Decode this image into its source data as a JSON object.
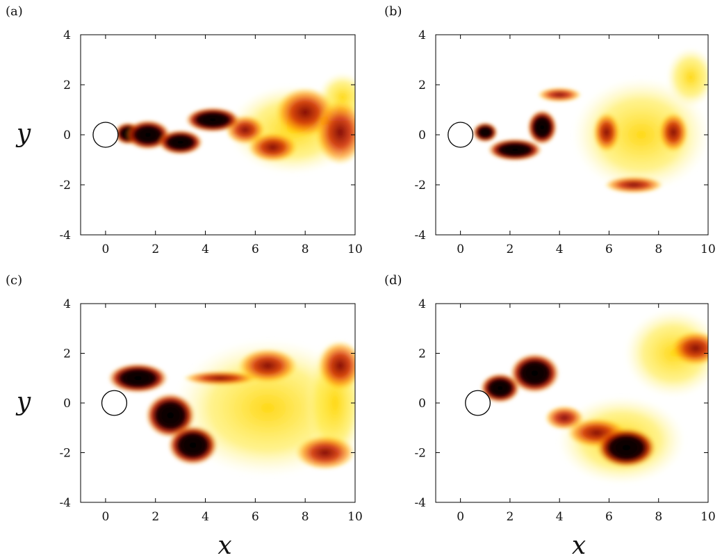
{
  "chart_data": [
    {
      "type": "heatmap",
      "panel_label": "(a)",
      "xlim": [
        -1,
        10
      ],
      "ylim": [
        -4,
        4
      ],
      "xticks": [
        0,
        2,
        4,
        6,
        8,
        10
      ],
      "yticks": [
        4,
        2,
        0,
        -2,
        -4
      ],
      "xtick_labels": [
        "0",
        "2",
        "4",
        "6",
        "8",
        "10"
      ],
      "ytick_labels": [
        "4",
        "2",
        "0",
        "-2",
        "-4"
      ],
      "ylabel": "y",
      "xlabel": "",
      "cylinder": {
        "x": 0,
        "y": 0,
        "r": 0.5
      },
      "colormap": "hot (black-red-yellow-white)",
      "features": [
        {
          "x": 0.9,
          "y": 0.05,
          "rx": 0.55,
          "ry": 0.45,
          "level": "high"
        },
        {
          "x": 1.7,
          "y": 0.0,
          "rx": 0.9,
          "ry": 0.6,
          "level": "high"
        },
        {
          "x": 3.0,
          "y": -0.3,
          "rx": 0.9,
          "ry": 0.5,
          "level": "high"
        },
        {
          "x": 4.3,
          "y": 0.6,
          "rx": 1.1,
          "ry": 0.5,
          "level": "high"
        },
        {
          "x": 5.6,
          "y": 0.2,
          "rx": 0.8,
          "ry": 0.6,
          "level": "medium"
        },
        {
          "x": 6.7,
          "y": -0.5,
          "rx": 1.0,
          "ry": 0.6,
          "level": "medium"
        },
        {
          "x": 8.0,
          "y": 0.9,
          "rx": 1.2,
          "ry": 1.0,
          "level": "medium"
        },
        {
          "x": 9.4,
          "y": 0.1,
          "rx": 1.0,
          "ry": 1.3,
          "level": "medium"
        },
        {
          "x": 7.5,
          "y": 0.2,
          "rx": 2.6,
          "ry": 1.8,
          "level": "low"
        },
        {
          "x": 9.5,
          "y": 1.5,
          "rx": 1.0,
          "ry": 1.0,
          "level": "low"
        }
      ]
    },
    {
      "type": "heatmap",
      "panel_label": "(b)",
      "xlim": [
        -1,
        10
      ],
      "ylim": [
        -4,
        4
      ],
      "xticks": [
        0,
        2,
        4,
        6,
        8,
        10
      ],
      "yticks": [
        4,
        2,
        0,
        -2,
        -4
      ],
      "xtick_labels": [
        "0",
        "2",
        "4",
        "6",
        "8",
        "10"
      ],
      "ytick_labels": [
        "4",
        "2",
        "0",
        "-2",
        "-4"
      ],
      "ylabel": "",
      "xlabel": "",
      "cylinder": {
        "x": 0,
        "y": 0,
        "r": 0.5
      },
      "colormap": "hot (black-red-yellow-white)",
      "features": [
        {
          "x": 1.0,
          "y": 0.1,
          "rx": 0.5,
          "ry": 0.4,
          "level": "high"
        },
        {
          "x": 2.2,
          "y": -0.6,
          "rx": 1.1,
          "ry": 0.45,
          "level": "high"
        },
        {
          "x": 3.3,
          "y": 0.3,
          "rx": 0.6,
          "ry": 0.7,
          "level": "high"
        },
        {
          "x": 4.0,
          "y": 1.6,
          "rx": 0.9,
          "ry": 0.3,
          "level": "medium"
        },
        {
          "x": 5.9,
          "y": 0.1,
          "rx": 0.55,
          "ry": 0.8,
          "level": "medium"
        },
        {
          "x": 7.0,
          "y": -2.0,
          "rx": 1.2,
          "ry": 0.35,
          "level": "medium"
        },
        {
          "x": 8.6,
          "y": 0.1,
          "rx": 0.6,
          "ry": 0.8,
          "level": "medium"
        },
        {
          "x": 7.3,
          "y": 0.0,
          "rx": 2.8,
          "ry": 2.3,
          "level": "low"
        },
        {
          "x": 9.3,
          "y": 2.3,
          "rx": 1.0,
          "ry": 1.2,
          "level": "low"
        }
      ]
    },
    {
      "type": "heatmap",
      "panel_label": "(c)",
      "xlim": [
        -1,
        10
      ],
      "ylim": [
        -4,
        4
      ],
      "xticks": [
        0,
        2,
        4,
        6,
        8,
        10
      ],
      "yticks": [
        4,
        2,
        0,
        -2,
        -4
      ],
      "xtick_labels": [
        "0",
        "2",
        "4",
        "6",
        "8",
        "10"
      ],
      "ytick_labels": [
        "4",
        "2",
        "0",
        "-2",
        "-4"
      ],
      "ylabel": "y",
      "xlabel": "x",
      "cylinder": {
        "x": 0.35,
        "y": 0,
        "r": 0.5
      },
      "colormap": "hot (black-red-yellow-white)",
      "features": [
        {
          "x": 1.3,
          "y": 1.0,
          "rx": 1.2,
          "ry": 0.6,
          "level": "high"
        },
        {
          "x": 2.6,
          "y": -0.5,
          "rx": 1.0,
          "ry": 0.9,
          "level": "high"
        },
        {
          "x": 3.5,
          "y": -1.7,
          "rx": 1.0,
          "ry": 0.8,
          "level": "high"
        },
        {
          "x": 4.6,
          "y": 1.0,
          "rx": 1.5,
          "ry": 0.3,
          "level": "medium"
        },
        {
          "x": 6.5,
          "y": 1.5,
          "rx": 1.2,
          "ry": 0.7,
          "level": "medium"
        },
        {
          "x": 8.8,
          "y": -2.0,
          "rx": 1.2,
          "ry": 0.7,
          "level": "medium"
        },
        {
          "x": 9.4,
          "y": 1.5,
          "rx": 0.9,
          "ry": 1.0,
          "level": "medium"
        },
        {
          "x": 6.5,
          "y": -0.2,
          "rx": 3.8,
          "ry": 2.8,
          "level": "low"
        },
        {
          "x": 9.2,
          "y": 0.0,
          "rx": 1.2,
          "ry": 2.6,
          "level": "low"
        }
      ]
    },
    {
      "type": "heatmap",
      "panel_label": "(d)",
      "xlim": [
        -1,
        10
      ],
      "ylim": [
        -4,
        4
      ],
      "xticks": [
        0,
        2,
        4,
        6,
        8,
        10
      ],
      "yticks": [
        4,
        2,
        0,
        -2,
        -4
      ],
      "xtick_labels": [
        "0",
        "2",
        "4",
        "6",
        "8",
        "10"
      ],
      "ytick_labels": [
        "4",
        "2",
        "0",
        "-2",
        "-4"
      ],
      "ylabel": "",
      "xlabel": "x",
      "cylinder": {
        "x": 0.7,
        "y": 0,
        "r": 0.5
      },
      "colormap": "hot (black-red-yellow-white)",
      "features": [
        {
          "x": 1.6,
          "y": 0.6,
          "rx": 0.8,
          "ry": 0.6,
          "level": "high"
        },
        {
          "x": 3.0,
          "y": 1.2,
          "rx": 1.0,
          "ry": 0.8,
          "level": "high"
        },
        {
          "x": 4.2,
          "y": -0.6,
          "rx": 0.8,
          "ry": 0.5,
          "level": "medium"
        },
        {
          "x": 6.7,
          "y": -1.8,
          "rx": 1.2,
          "ry": 0.8,
          "level": "high"
        },
        {
          "x": 5.5,
          "y": -1.2,
          "rx": 1.2,
          "ry": 0.6,
          "level": "medium"
        },
        {
          "x": 6.5,
          "y": -1.5,
          "rx": 2.6,
          "ry": 1.8,
          "level": "low"
        },
        {
          "x": 9.5,
          "y": 2.2,
          "rx": 1.0,
          "ry": 0.7,
          "level": "medium"
        },
        {
          "x": 8.6,
          "y": 2.0,
          "rx": 2.0,
          "ry": 1.8,
          "level": "low"
        }
      ]
    }
  ]
}
